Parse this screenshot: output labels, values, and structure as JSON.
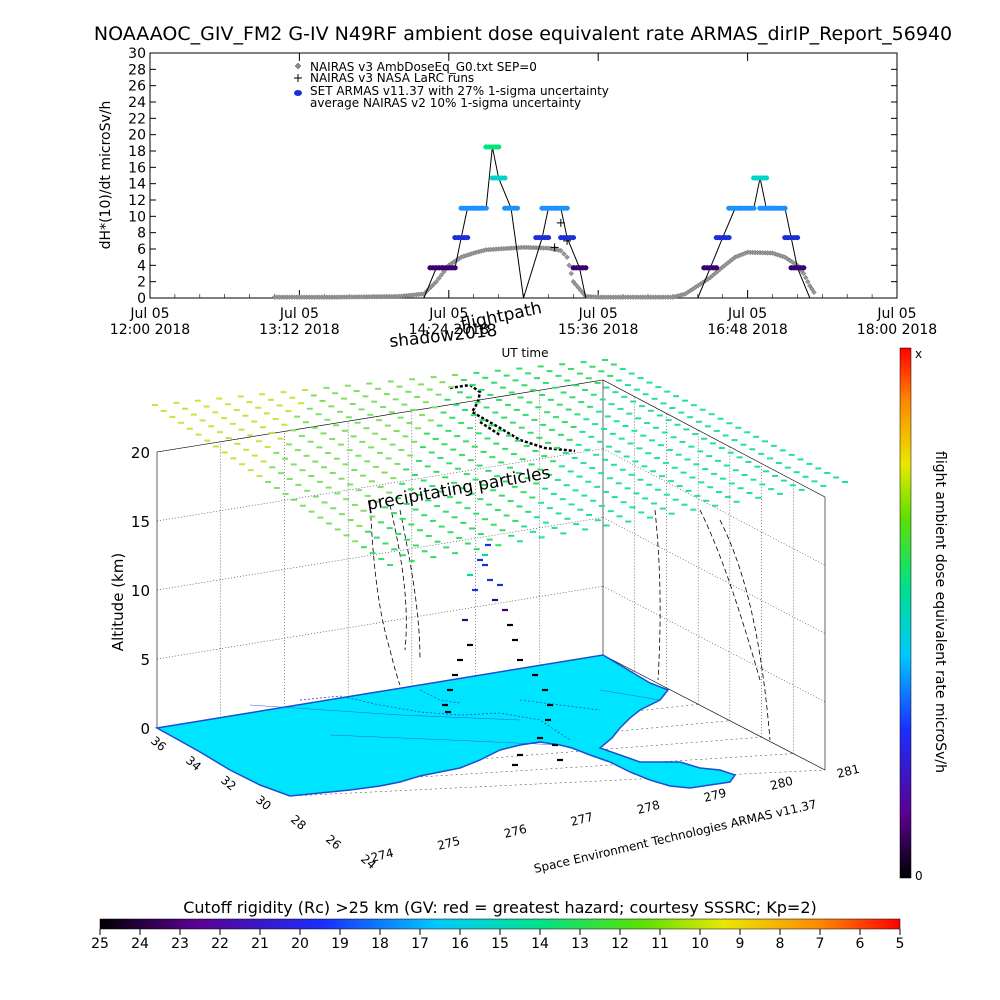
{
  "title": "NOAAAOC_GIV_FM2 G-IV   N49RF  ambient dose equivalent rate ARMAS_dirIP_Report_56940",
  "chart_data": [
    {
      "type": "scatter",
      "ylabel": "dH*(10)/dt microSv/h",
      "xlabel": "UT time",
      "ylim": [
        0,
        30
      ],
      "yticks": [
        "0",
        "2",
        "4",
        "6",
        "8",
        "10",
        "12",
        "14",
        "16",
        "18",
        "20",
        "22",
        "24",
        "26",
        "28",
        "30"
      ],
      "xticks": [
        {
          "l1": "Jul 05",
          "l2": "12:00 2018"
        },
        {
          "l1": "Jul 05",
          "l2": "13:12 2018"
        },
        {
          "l1": "Jul 05",
          "l2": "14:24 2018"
        },
        {
          "l1": "Jul 05",
          "l2": "15:36 2018"
        },
        {
          "l1": "Jul 05",
          "l2": "16:48 2018"
        },
        {
          "l1": "Jul 05",
          "l2": "18:00 2018"
        }
      ],
      "legend": [
        {
          "symbol": "diamond",
          "label": "NAIRAS v3 AmbDoseEq_G0.txt SEP=0"
        },
        {
          "symbol": "plus",
          "label": "NAIRAS v3 NASA LaRC runs"
        },
        {
          "symbol": "dot",
          "label": "SET ARMAS v11.37 with 27% 1-sigma uncertainty"
        },
        {
          "symbol": "none",
          "label": "average NAIRAS v2 10% 1-sigma uncertainty"
        }
      ],
      "nairas_series": [
        [
          13.0,
          0.1
        ],
        [
          13.5,
          0.1
        ],
        [
          14.0,
          0.2
        ],
        [
          14.2,
          0.5
        ],
        [
          14.3,
          2.0
        ],
        [
          14.4,
          4.0
        ],
        [
          14.5,
          5.0
        ],
        [
          14.6,
          5.5
        ],
        [
          14.7,
          5.9
        ],
        [
          14.8,
          6.0
        ],
        [
          15.0,
          6.2
        ],
        [
          15.2,
          6.1
        ],
        [
          15.3,
          5.8
        ],
        [
          15.35,
          5.0
        ],
        [
          15.4,
          2.0
        ],
        [
          15.5,
          0.2
        ],
        [
          15.6,
          0.1
        ],
        [
          16.0,
          0.1
        ],
        [
          16.2,
          0.1
        ],
        [
          16.3,
          0.5
        ],
        [
          16.4,
          1.5
        ],
        [
          16.5,
          2.5
        ],
        [
          16.6,
          3.8
        ],
        [
          16.7,
          5.0
        ],
        [
          16.8,
          5.6
        ],
        [
          17.0,
          5.5
        ],
        [
          17.1,
          5.0
        ],
        [
          17.2,
          4.0
        ],
        [
          17.25,
          3.0
        ],
        [
          17.3,
          1.5
        ],
        [
          17.35,
          0.3
        ]
      ],
      "armas_series": [
        [
          14.3,
          3.7
        ],
        [
          14.4,
          3.7
        ],
        [
          14.5,
          7.4
        ],
        [
          14.55,
          11.0
        ],
        [
          14.65,
          11.0
        ],
        [
          14.75,
          18.5
        ],
        [
          14.8,
          14.7
        ],
        [
          14.9,
          11.0
        ],
        [
          15.15,
          7.4
        ],
        [
          15.2,
          11.0
        ],
        [
          15.3,
          11.0
        ],
        [
          15.35,
          7.4
        ],
        [
          15.45,
          3.7
        ],
        [
          16.5,
          3.7
        ],
        [
          16.6,
          7.4
        ],
        [
          16.7,
          11.0
        ],
        [
          16.8,
          11.0
        ],
        [
          16.9,
          14.7
        ],
        [
          16.95,
          11.0
        ],
        [
          17.05,
          11.0
        ],
        [
          17.15,
          7.4
        ],
        [
          17.2,
          3.7
        ]
      ]
    },
    {
      "type": "scatter3d",
      "zlabel": "Altitude (km)",
      "zticks": [
        "0",
        "5",
        "10",
        "15",
        "20"
      ],
      "lat_ticks": [
        "36",
        "34",
        "32",
        "30",
        "28",
        "26",
        "24"
      ],
      "lon_ticks": [
        "274",
        "275",
        "276",
        "277",
        "278",
        "279",
        "280",
        "281"
      ],
      "annotations": {
        "shadow": "shadow2018",
        "flightpath": "flightpath",
        "precip": "precipitating particles",
        "credit": "Space Environment Technologies ARMAS v11.37"
      },
      "colorbar_right": {
        "label": "flight ambient dose equivalent rate microSv/h",
        "top": "x",
        "bottom": "0"
      },
      "colorbar_bottom": {
        "label": "Cutoff rigidity (Rc) >25 km (GV: red = greatest hazard; courtesy SSSRC; Kp=2)",
        "ticks": [
          "25",
          "24",
          "23",
          "22",
          "21",
          "20",
          "19",
          "18",
          "17",
          "16",
          "15",
          "14",
          "13",
          "12",
          "11",
          "10",
          "9",
          "8",
          "7",
          "6",
          "5"
        ]
      }
    }
  ],
  "colors": {
    "armas_low": "#3b0072",
    "armas_mid": "#1f2fd6",
    "armas_high": "#1e90ff",
    "armas_peak": "#00e47a",
    "land": "#00e5ff",
    "dash_green": "#33dd66",
    "dash_yellow": "#c8e43c"
  }
}
